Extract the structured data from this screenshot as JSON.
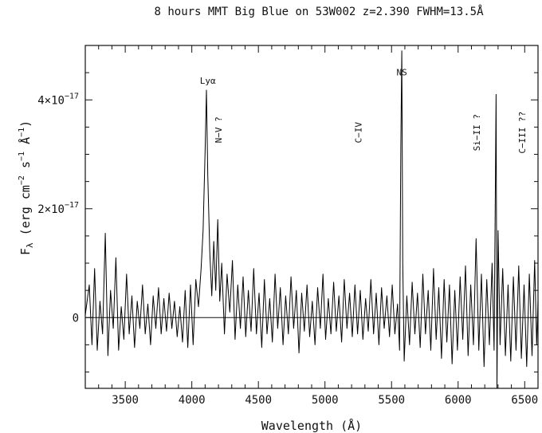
{
  "chart_data": {
    "type": "line",
    "title": "8 hours MMT Big Blue on 53W002 z=2.390 FWHM=13.5Å",
    "xlabel": "Wavelength (Å)",
    "ylabel_parts": {
      "symbol": "F",
      "subscript": "λ",
      "units_prefix": " (erg cm",
      "exp1": "−2",
      "mid1": " s",
      "exp2": "−1",
      "mid2": " Å",
      "exp3": "−1",
      "units_suffix": ")"
    },
    "xlim": [
      3200,
      6600
    ],
    "ylim": [
      -1.3e-17,
      5e-17
    ],
    "x_ticks": [
      {
        "value": 3500,
        "label": "3500"
      },
      {
        "value": 4000,
        "label": "4000"
      },
      {
        "value": 4500,
        "label": "4500"
      },
      {
        "value": 5000,
        "label": "5000"
      },
      {
        "value": 5500,
        "label": "5500"
      },
      {
        "value": 6000,
        "label": "6000"
      },
      {
        "value": 6500,
        "label": "6500"
      }
    ],
    "y_ticks": [
      {
        "value": 0,
        "label": "0",
        "exp": ""
      },
      {
        "value": 2e-17,
        "label": "2×10",
        "exp": "−17"
      },
      {
        "value": 4e-17,
        "label": "4×10",
        "exp": "−17"
      }
    ],
    "zero_line": true,
    "annotations": [
      {
        "text": "Lyα",
        "x": 4120,
        "y": 4.3e-17,
        "rotated": false
      },
      {
        "text": "N−V ?",
        "x": 4200,
        "y": 3.45e-17,
        "rotated": true
      },
      {
        "text": "C−IV",
        "x": 5250,
        "y": 3.4e-17,
        "rotated": true
      },
      {
        "text": "NS",
        "x": 5577,
        "y": 4.45e-17,
        "rotated": false
      },
      {
        "text": "Si−II ?",
        "x": 6140,
        "y": 3.4e-17,
        "rotated": true
      },
      {
        "text": "C−III ??",
        "x": 6480,
        "y": 3.4e-17,
        "rotated": true
      }
    ],
    "series": [
      {
        "color": "#000000",
        "points": [
          [
            3200,
            5e-19
          ],
          [
            3230,
            6e-18
          ],
          [
            3250,
            -5e-18
          ],
          [
            3270,
            9e-18
          ],
          [
            3290,
            -6e-18
          ],
          [
            3310,
            3e-18
          ],
          [
            3330,
            -3e-18
          ],
          [
            3350,
            1.55e-17
          ],
          [
            3370,
            -7e-18
          ],
          [
            3390,
            5e-18
          ],
          [
            3410,
            -2e-18
          ],
          [
            3430,
            1.1e-17
          ],
          [
            3450,
            -6e-18
          ],
          [
            3470,
            2e-18
          ],
          [
            3490,
            -4e-18
          ],
          [
            3510,
            8e-18
          ],
          [
            3530,
            -3e-18
          ],
          [
            3550,
            4e-18
          ],
          [
            3570,
            -5.5e-18
          ],
          [
            3590,
            3e-18
          ],
          [
            3610,
            -2e-18
          ],
          [
            3630,
            6e-18
          ],
          [
            3650,
            -3e-18
          ],
          [
            3670,
            2.5e-18
          ],
          [
            3690,
            -5e-18
          ],
          [
            3710,
            4e-18
          ],
          [
            3730,
            -2e-18
          ],
          [
            3750,
            5.5e-18
          ],
          [
            3770,
            -3e-18
          ],
          [
            3790,
            3.5e-18
          ],
          [
            3810,
            -2.5e-18
          ],
          [
            3830,
            4.5e-18
          ],
          [
            3850,
            -2e-18
          ],
          [
            3870,
            3e-18
          ],
          [
            3890,
            -3.5e-18
          ],
          [
            3910,
            2e-18
          ],
          [
            3930,
            -4.5e-18
          ],
          [
            3950,
            5e-18
          ],
          [
            3970,
            -5.5e-18
          ],
          [
            3990,
            6e-18
          ],
          [
            4010,
            -5e-18
          ],
          [
            4030,
            7e-18
          ],
          [
            4050,
            2e-18
          ],
          [
            4070,
            9e-18
          ],
          [
            4085,
            1.6e-17
          ],
          [
            4100,
            3.1e-17
          ],
          [
            4110,
            4.18e-17
          ],
          [
            4120,
            2.6e-17
          ],
          [
            4135,
            1.2e-17
          ],
          [
            4150,
            4e-18
          ],
          [
            4165,
            1.4e-17
          ],
          [
            4180,
            5e-18
          ],
          [
            4195,
            1.8e-17
          ],
          [
            4210,
            3e-18
          ],
          [
            4225,
            1e-17
          ],
          [
            4245,
            -3e-18
          ],
          [
            4265,
            8e-18
          ],
          [
            4285,
            1e-18
          ],
          [
            4305,
            1.05e-17
          ],
          [
            4325,
            -4e-18
          ],
          [
            4345,
            6e-18
          ],
          [
            4365,
            -2e-18
          ],
          [
            4385,
            7.5e-18
          ],
          [
            4405,
            -3.5e-18
          ],
          [
            4425,
            5e-18
          ],
          [
            4445,
            -2.5e-18
          ],
          [
            4465,
            9e-18
          ],
          [
            4485,
            -3e-18
          ],
          [
            4505,
            4.5e-18
          ],
          [
            4525,
            -5.5e-18
          ],
          [
            4545,
            7e-18
          ],
          [
            4565,
            -3e-18
          ],
          [
            4585,
            3.5e-18
          ],
          [
            4605,
            -4.5e-18
          ],
          [
            4625,
            8e-18
          ],
          [
            4645,
            -2e-18
          ],
          [
            4665,
            5.5e-18
          ],
          [
            4685,
            -5e-18
          ],
          [
            4705,
            4e-18
          ],
          [
            4725,
            -3e-18
          ],
          [
            4745,
            7.5e-18
          ],
          [
            4765,
            -2e-18
          ],
          [
            4785,
            5e-18
          ],
          [
            4805,
            -6.5e-18
          ],
          [
            4825,
            4.5e-18
          ],
          [
            4845,
            -2.5e-18
          ],
          [
            4865,
            6e-18
          ],
          [
            4885,
            -3.5e-18
          ],
          [
            4905,
            3e-18
          ],
          [
            4925,
            -5e-18
          ],
          [
            4945,
            5.5e-18
          ],
          [
            4965,
            -2e-18
          ],
          [
            4985,
            8e-18
          ],
          [
            5005,
            -4e-18
          ],
          [
            5025,
            3.5e-18
          ],
          [
            5045,
            -3e-18
          ],
          [
            5065,
            6.5e-18
          ],
          [
            5085,
            -2.5e-18
          ],
          [
            5105,
            4e-18
          ],
          [
            5125,
            -4.5e-18
          ],
          [
            5145,
            7e-18
          ],
          [
            5165,
            -2e-18
          ],
          [
            5185,
            4.5e-18
          ],
          [
            5205,
            -3.5e-18
          ],
          [
            5225,
            6e-18
          ],
          [
            5245,
            -3e-18
          ],
          [
            5265,
            5e-18
          ],
          [
            5285,
            -4e-18
          ],
          [
            5305,
            3.5e-18
          ],
          [
            5325,
            -2.5e-18
          ],
          [
            5345,
            7e-18
          ],
          [
            5365,
            -3e-18
          ],
          [
            5385,
            4.5e-18
          ],
          [
            5405,
            -5e-18
          ],
          [
            5425,
            5.5e-18
          ],
          [
            5445,
            -2e-18
          ],
          [
            5465,
            4e-18
          ],
          [
            5485,
            -3.5e-18
          ],
          [
            5505,
            6e-18
          ],
          [
            5525,
            -3e-18
          ],
          [
            5545,
            2.5e-18
          ],
          [
            5560,
            -6e-18
          ],
          [
            5570,
            3.2e-17
          ],
          [
            5577,
            4.9e-17
          ],
          [
            5584,
            1e-17
          ],
          [
            5595,
            -8e-18
          ],
          [
            5615,
            4e-18
          ],
          [
            5635,
            -5e-18
          ],
          [
            5655,
            6.5e-18
          ],
          [
            5675,
            -3e-18
          ],
          [
            5695,
            4.5e-18
          ],
          [
            5715,
            -5.5e-18
          ],
          [
            5735,
            8e-18
          ],
          [
            5755,
            -3e-18
          ],
          [
            5775,
            5e-18
          ],
          [
            5795,
            -6e-18
          ],
          [
            5815,
            9e-18
          ],
          [
            5835,
            -4e-18
          ],
          [
            5855,
            5.5e-18
          ],
          [
            5875,
            -7.5e-18
          ],
          [
            5895,
            7e-18
          ],
          [
            5915,
            -4.5e-18
          ],
          [
            5935,
            6e-18
          ],
          [
            5955,
            -8.5e-18
          ],
          [
            5975,
            5e-18
          ],
          [
            5995,
            -6e-18
          ],
          [
            6015,
            7.5e-18
          ],
          [
            6035,
            -4e-18
          ],
          [
            6055,
            9.5e-18
          ],
          [
            6075,
            -7e-18
          ],
          [
            6095,
            6e-18
          ],
          [
            6115,
            -5e-18
          ],
          [
            6135,
            1.45e-17
          ],
          [
            6155,
            -6e-18
          ],
          [
            6175,
            8e-18
          ],
          [
            6195,
            -9e-18
          ],
          [
            6215,
            7e-18
          ],
          [
            6235,
            -5e-18
          ],
          [
            6255,
            1e-17
          ],
          [
            6270,
            -6e-18
          ],
          [
            6285,
            4.1e-17
          ],
          [
            6292,
            -1.3e-17
          ],
          [
            6300,
            1.6e-17
          ],
          [
            6315,
            -5e-18
          ],
          [
            6335,
            9e-18
          ],
          [
            6355,
            -7e-18
          ],
          [
            6375,
            6e-18
          ],
          [
            6395,
            -8e-18
          ],
          [
            6415,
            7.5e-18
          ],
          [
            6435,
            -6e-18
          ],
          [
            6455,
            9.5e-18
          ],
          [
            6475,
            -7.5e-18
          ],
          [
            6495,
            6e-18
          ],
          [
            6515,
            -9e-18
          ],
          [
            6535,
            8e-18
          ],
          [
            6555,
            -7e-18
          ],
          [
            6575,
            1.05e-17
          ],
          [
            6590,
            -5e-18
          ],
          [
            6600,
            3e-18
          ]
        ]
      }
    ]
  }
}
